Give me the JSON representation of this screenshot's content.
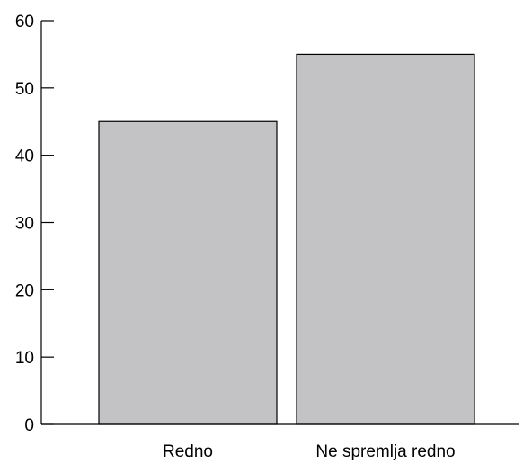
{
  "chart_data": {
    "type": "bar",
    "categories": [
      "Redno",
      "Ne spremlja redno"
    ],
    "values": [
      45,
      55
    ],
    "ylim": [
      0,
      60
    ],
    "yticks": [
      "0",
      "10",
      "20",
      "30",
      "40",
      "50",
      "60"
    ],
    "grid": false,
    "bar_color": "#c3c3c5"
  }
}
